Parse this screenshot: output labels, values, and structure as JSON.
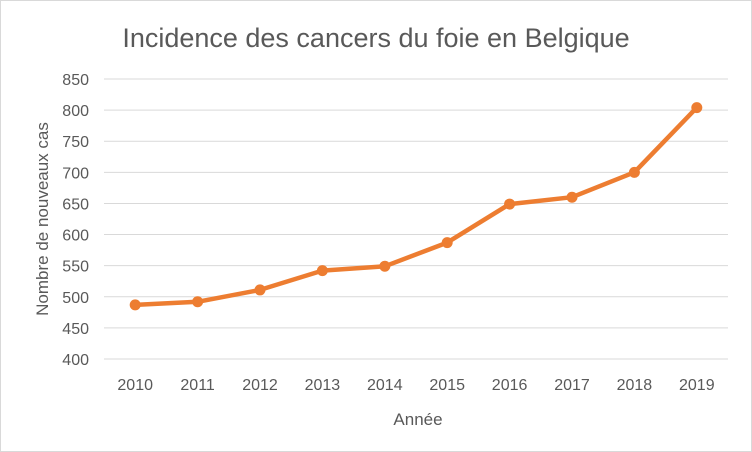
{
  "chart_data": {
    "type": "line",
    "title": "Incidence des cancers du foie en Belgique",
    "xlabel": "Année",
    "ylabel": "Nombre de nouveaux cas",
    "categories": [
      "2010",
      "2011",
      "2012",
      "2013",
      "2014",
      "2015",
      "2016",
      "2017",
      "2018",
      "2019"
    ],
    "series": [
      {
        "values": [
          487,
          492,
          511,
          542,
          549,
          587,
          649,
          660,
          700,
          804
        ]
      }
    ],
    "ylim": [
      400,
      850
    ],
    "yticks": [
      "400",
      "450",
      "500",
      "550",
      "600",
      "650",
      "700",
      "750",
      "800",
      "850"
    ],
    "grid": "horizontal",
    "legend": "none",
    "colors": {
      "series": "#ed7d31",
      "grid": "#d9d9d9",
      "text": "#595959"
    }
  }
}
